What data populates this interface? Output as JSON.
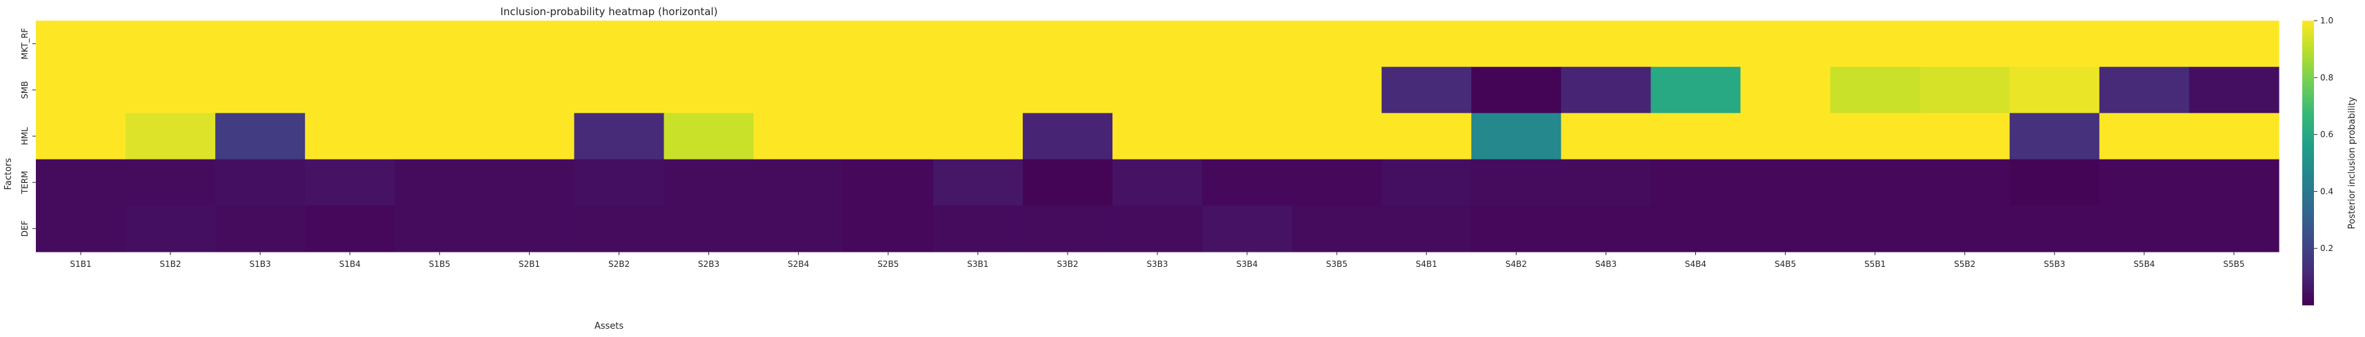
{
  "chart_data": {
    "type": "heatmap",
    "title": "Inclusion-probability heatmap (horizontal)",
    "xlabel": "Assets",
    "ylabel": "Factors",
    "colorbar_label": "Posterior inclusion probability",
    "colormap": "viridis",
    "vmin": 0.0,
    "vmax": 1.0,
    "colorbar_ticks": [
      "0.2",
      "0.4",
      "0.6",
      "0.8",
      "1.0"
    ],
    "colorbar_tick_values": [
      0.2,
      0.4,
      0.6,
      0.8,
      1.0
    ],
    "x_categories": [
      "S1B1",
      "S1B2",
      "S1B3",
      "S1B4",
      "S1B5",
      "S2B1",
      "S2B2",
      "S2B3",
      "S2B4",
      "S2B5",
      "S3B1",
      "S3B2",
      "S3B3",
      "S3B4",
      "S3B5",
      "S4B1",
      "S4B2",
      "S4B3",
      "S4B4",
      "S4B5",
      "S5B1",
      "S5B2",
      "S5B3",
      "S5B4",
      "S5B5"
    ],
    "y_categories": [
      "MKT_RF",
      "SMB",
      "HML",
      "TERM",
      "DEF"
    ],
    "values": [
      [
        1,
        1,
        1,
        1,
        1,
        1,
        1,
        1,
        1,
        1,
        1,
        1,
        1,
        1,
        1,
        1,
        1,
        1,
        1,
        1,
        1,
        1,
        1,
        1,
        1
      ],
      [
        1,
        1,
        1,
        1,
        1,
        1,
        1,
        1,
        1,
        1,
        1,
        1,
        1,
        1,
        1,
        0.12,
        0.01,
        0.1,
        0.6,
        1,
        0.92,
        0.94,
        0.97,
        0.12,
        0.04
      ],
      [
        1,
        0.95,
        0.18,
        1,
        1,
        1,
        0.12,
        0.92,
        1,
        1,
        1,
        0.1,
        1,
        1,
        1,
        1,
        0.47,
        1,
        1,
        1,
        1,
        1,
        0.14,
        1,
        1
      ],
      [
        0.03,
        0.03,
        0.04,
        0.05,
        0.03,
        0.03,
        0.04,
        0.03,
        0.03,
        0.02,
        0.06,
        0.01,
        0.05,
        0.02,
        0.02,
        0.04,
        0.03,
        0.03,
        0.02,
        0.02,
        0.02,
        0.02,
        0.01,
        0.02,
        0.02
      ],
      [
        0.03,
        0.04,
        0.03,
        0.02,
        0.03,
        0.03,
        0.03,
        0.03,
        0.03,
        0.02,
        0.03,
        0.03,
        0.03,
        0.05,
        0.03,
        0.03,
        0.02,
        0.02,
        0.02,
        0.02,
        0.02,
        0.02,
        0.02,
        0.02,
        0.02
      ]
    ]
  }
}
